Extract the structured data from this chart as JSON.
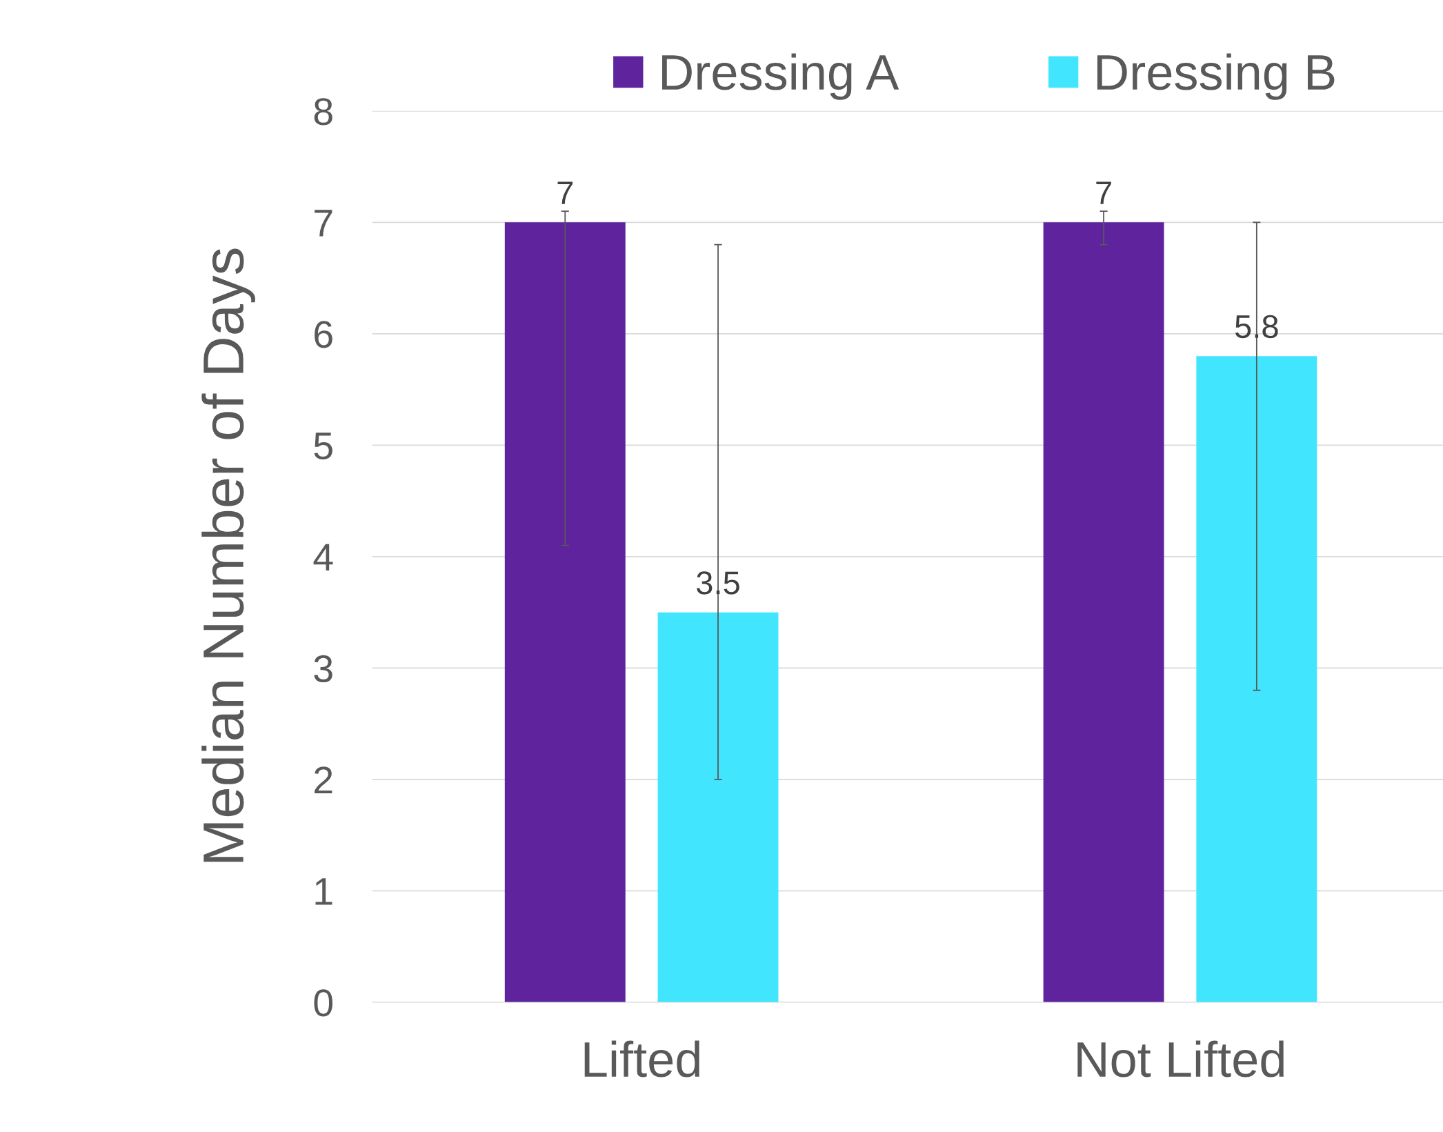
{
  "chart_data": {
    "type": "bar",
    "ylabel": "Median Number of Days",
    "categories": [
      "Lifted",
      "Not Lifted"
    ],
    "series": [
      {
        "name": "Dressing A",
        "color": "#5e239d",
        "values": [
          7,
          7
        ],
        "errors": [
          [
            4.1,
            7.1
          ],
          [
            6.8,
            7.1
          ]
        ]
      },
      {
        "name": "Dressing B",
        "color": "#41e6fe",
        "values": [
          3.5,
          5.8
        ],
        "errors": [
          [
            2.0,
            6.8
          ],
          [
            2.8,
            7.0
          ]
        ]
      }
    ],
    "ylim": [
      0,
      8
    ],
    "yticks": [
      0,
      1,
      2,
      3,
      4,
      5,
      6,
      7,
      8
    ],
    "grid": "y",
    "legend": "top",
    "data_labels": true
  }
}
